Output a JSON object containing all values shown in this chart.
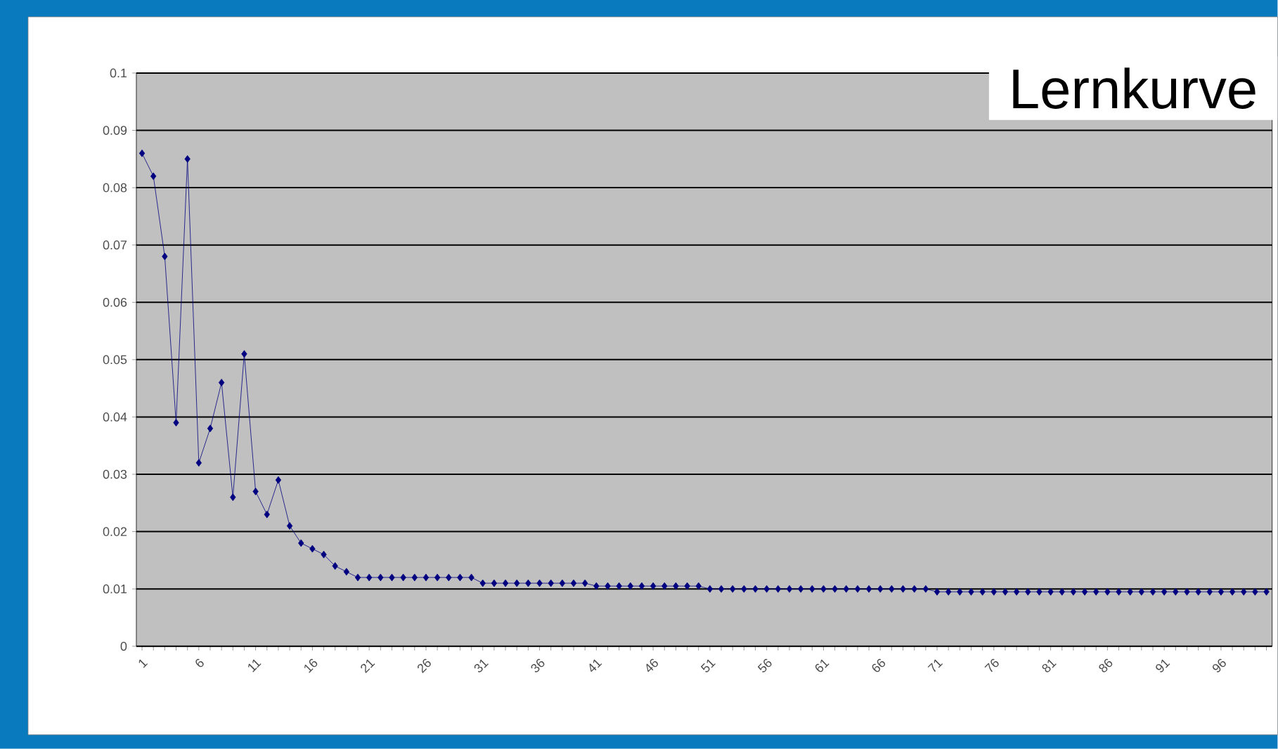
{
  "chart_data": {
    "type": "line",
    "title": "Lernkurve",
    "categories": [
      "1",
      null,
      null,
      null,
      null,
      "6",
      null,
      null,
      null,
      null,
      "11",
      null,
      null,
      null,
      null,
      "16",
      null,
      null,
      null,
      null,
      "21",
      null,
      null,
      null,
      null,
      "26",
      null,
      null,
      null,
      null,
      "31",
      null,
      null,
      null,
      null,
      "36",
      null,
      null,
      null,
      null,
      "41",
      null,
      null,
      null,
      null,
      "46",
      null,
      null,
      null,
      null,
      "51",
      null,
      null,
      null,
      null,
      "56",
      null,
      null,
      null,
      null,
      "61",
      null,
      null,
      null,
      null,
      "66",
      null,
      null,
      null,
      null,
      "71",
      null,
      null,
      null,
      null,
      "76",
      null,
      null,
      null,
      null,
      "81",
      null,
      null,
      null,
      null,
      "86",
      null,
      null,
      null,
      null,
      "91",
      null,
      null,
      null,
      null,
      "96",
      null,
      null,
      null,
      null
    ],
    "series": [
      {
        "color": "#000080",
        "values": [
          0.086,
          0.082,
          0.068,
          0.039,
          0.085,
          0.032,
          0.038,
          0.046,
          0.026,
          0.051,
          0.027,
          0.023,
          0.029,
          0.021,
          0.018,
          0.017,
          0.016,
          0.014,
          0.013,
          0.012,
          0.012,
          0.012,
          0.012,
          0.012,
          0.012,
          0.012,
          0.012,
          0.012,
          0.012,
          0.012,
          0.011,
          0.011,
          0.011,
          0.011,
          0.011,
          0.011,
          0.011,
          0.011,
          0.011,
          0.011,
          0.0105,
          0.0105,
          0.0105,
          0.0105,
          0.0105,
          0.0105,
          0.0105,
          0.0105,
          0.0105,
          0.0105,
          0.01,
          0.01,
          0.01,
          0.01,
          0.01,
          0.01,
          0.01,
          0.01,
          0.01,
          0.01,
          0.01,
          0.01,
          0.01,
          0.01,
          0.01,
          0.01,
          0.01,
          0.01,
          0.01,
          0.01,
          0.0095,
          0.0095,
          0.0095,
          0.0095,
          0.0095,
          0.0095,
          0.0095,
          0.0095,
          0.0095,
          0.0095,
          0.0095,
          0.0095,
          0.0095,
          0.0095,
          0.0095,
          0.0095,
          0.0095,
          0.0095,
          0.0095,
          0.0095,
          0.0095,
          0.0095,
          0.0095,
          0.0095,
          0.0095,
          0.0095,
          0.0095,
          0.0095,
          0.0095,
          0.0095
        ]
      }
    ],
    "ylim": [
      0,
      0.1
    ],
    "yticks": [
      0,
      0.01,
      0.02,
      0.03,
      0.04,
      0.05,
      0.06,
      0.07,
      0.08,
      0.09,
      0.1
    ],
    "grid": "y",
    "marker": "diamond",
    "line_style": "solid"
  }
}
